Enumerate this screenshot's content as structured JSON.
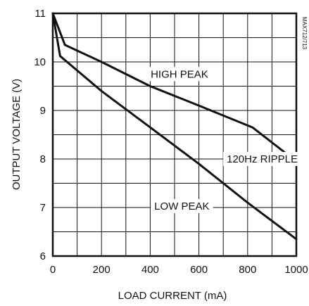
{
  "chart_data": {
    "type": "line",
    "xlabel": "LOAD CURRENT (mA)",
    "ylabel": "OUTPUT VOLTAGE (V)",
    "xlim": [
      0,
      1000
    ],
    "ylim": [
      6,
      11
    ],
    "xticks": [
      0,
      200,
      400,
      600,
      800,
      1000
    ],
    "yticks": [
      6,
      7,
      8,
      9,
      10,
      11
    ],
    "x_tick_labels": [
      "0",
      "200",
      "400",
      "600",
      "800",
      "1000"
    ],
    "y_tick_labels": [
      "6",
      "7",
      "8",
      "9",
      "10",
      "11"
    ],
    "x_minor_step": 100,
    "y_minor_step": 0.5,
    "grid": true,
    "side_note": "MAX712/713",
    "series": [
      {
        "name": "HIGH PEAK",
        "x": [
          0,
          50,
          200,
          400,
          600,
          820,
          1000
        ],
        "y": [
          11.0,
          10.35,
          10.0,
          9.5,
          9.1,
          8.65,
          7.95
        ]
      },
      {
        "name": "LOW PEAK",
        "x": [
          0,
          30,
          200,
          400,
          600,
          800,
          1000
        ],
        "y": [
          11.0,
          10.12,
          9.4,
          8.65,
          7.9,
          7.1,
          6.35
        ]
      }
    ],
    "annotations": [
      {
        "text": "HIGH PEAK",
        "x": 520,
        "y": 9.75
      },
      {
        "text": "120Hz RIPPLE",
        "x": 860,
        "y": 8.0
      },
      {
        "text": "LOW PEAK",
        "x": 530,
        "y": 7.03
      }
    ]
  }
}
